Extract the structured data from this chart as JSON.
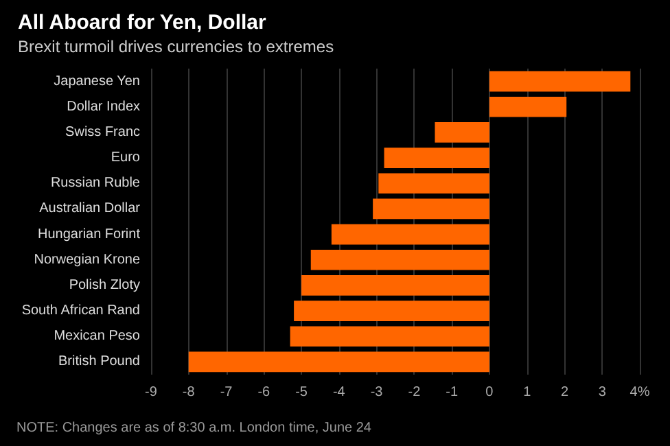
{
  "chart_data": {
    "type": "bar",
    "orientation": "horizontal",
    "title": "All Aboard for Yen, Dollar",
    "subtitle": "Brexit turmoil drives currencies to extremes",
    "categories": [
      "Japanese Yen",
      "Dollar Index",
      "Swiss Franc",
      "Euro",
      "Russian Ruble",
      "Australian Dollar",
      "Hungarian Forint",
      "Norwegian Krone",
      "Polish Zloty",
      "South African Rand",
      "Mexican Peso",
      "British Pound"
    ],
    "values": [
      3.75,
      2.05,
      -1.45,
      -2.8,
      -2.95,
      -3.1,
      -4.2,
      -4.75,
      -5.0,
      -5.2,
      -5.3,
      -8.0
    ],
    "color": "#ff6600",
    "xlim": [
      -9,
      4
    ],
    "xticks": [
      -9,
      -8,
      -7,
      -6,
      -5,
      -4,
      -3,
      -2,
      -1,
      0,
      1,
      2,
      3,
      {
        "value": 4,
        "label": "4%"
      }
    ],
    "grid": "x",
    "annotations": [
      "NOTE: Changes are as of 8:30 a.m. London time, June 24"
    ]
  }
}
